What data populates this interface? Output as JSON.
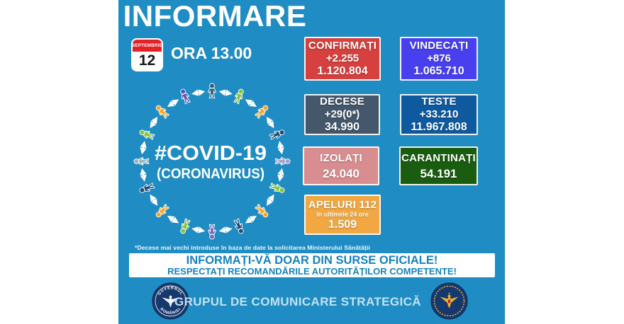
{
  "title": "INFORMARE",
  "date": {
    "month": "SEPTEMBRIE",
    "day": "12",
    "time": "ORA 13.00"
  },
  "logo": {
    "hashtag": "#COVID-19",
    "subtitle": "(CORONAVIRUS)",
    "people_colors": [
      "#2b607a",
      "#85c341",
      "#f5a428",
      "#1f4e79",
      "#a59ec6",
      "#85c341",
      "#f5a428",
      "#1f4e79",
      "#7d68b4",
      "#85c341",
      "#f5a428",
      "#1f4e79",
      "#9fb0be",
      "#85c341",
      "#f5a428",
      "#5b57b1"
    ]
  },
  "stats": {
    "confirmed": {
      "label": "CONFIRMAȚI",
      "delta": "+2.255",
      "total": "1.120.804",
      "color": "#d6403e"
    },
    "recovered": {
      "label": "VINDECAȚI",
      "delta": "+876",
      "total": "1.065.710",
      "color": "#4840ef"
    },
    "deaths": {
      "label": "DECESE",
      "delta": "+29(0*)",
      "total": "34.990",
      "color": "#45576b"
    },
    "tests": {
      "label": "TESTE",
      "delta": "+33.210",
      "total": "11.967.808",
      "color": "#0f5a9e"
    },
    "isolated": {
      "label": "IZOLAȚI",
      "total": "24.040",
      "color": "#d88d90"
    },
    "quarantined": {
      "label": "CARANTINAȚI",
      "total": "54.191",
      "color": "#1a5c10"
    },
    "calls": {
      "label": "APELURI 112",
      "sublabel": "în ultimele 24 ore",
      "total": "1.509",
      "color": "#f1a843"
    }
  },
  "footnote": "*Decese mai vechi introduse în baza de date la solicitarea Ministerului Sănătății",
  "banner": {
    "line1": "INFORMAȚI-VĂ DOAR DIN SURSE OFICIALE!",
    "line2": "RESPECTAȚI RECOMANDĂRILE AUTORITĂȚILOR COMPETENTE!",
    "text_color": "#1583bd"
  },
  "footer": {
    "text": "GRUPUL DE COMUNICARE STRATEGICĂ",
    "seal_left_top": "GUVERNUL",
    "seal_left_bottom": "ROMÂNIEI"
  },
  "colors": {
    "background": "#1f8dc3",
    "calendar_red": "#e32227"
  }
}
